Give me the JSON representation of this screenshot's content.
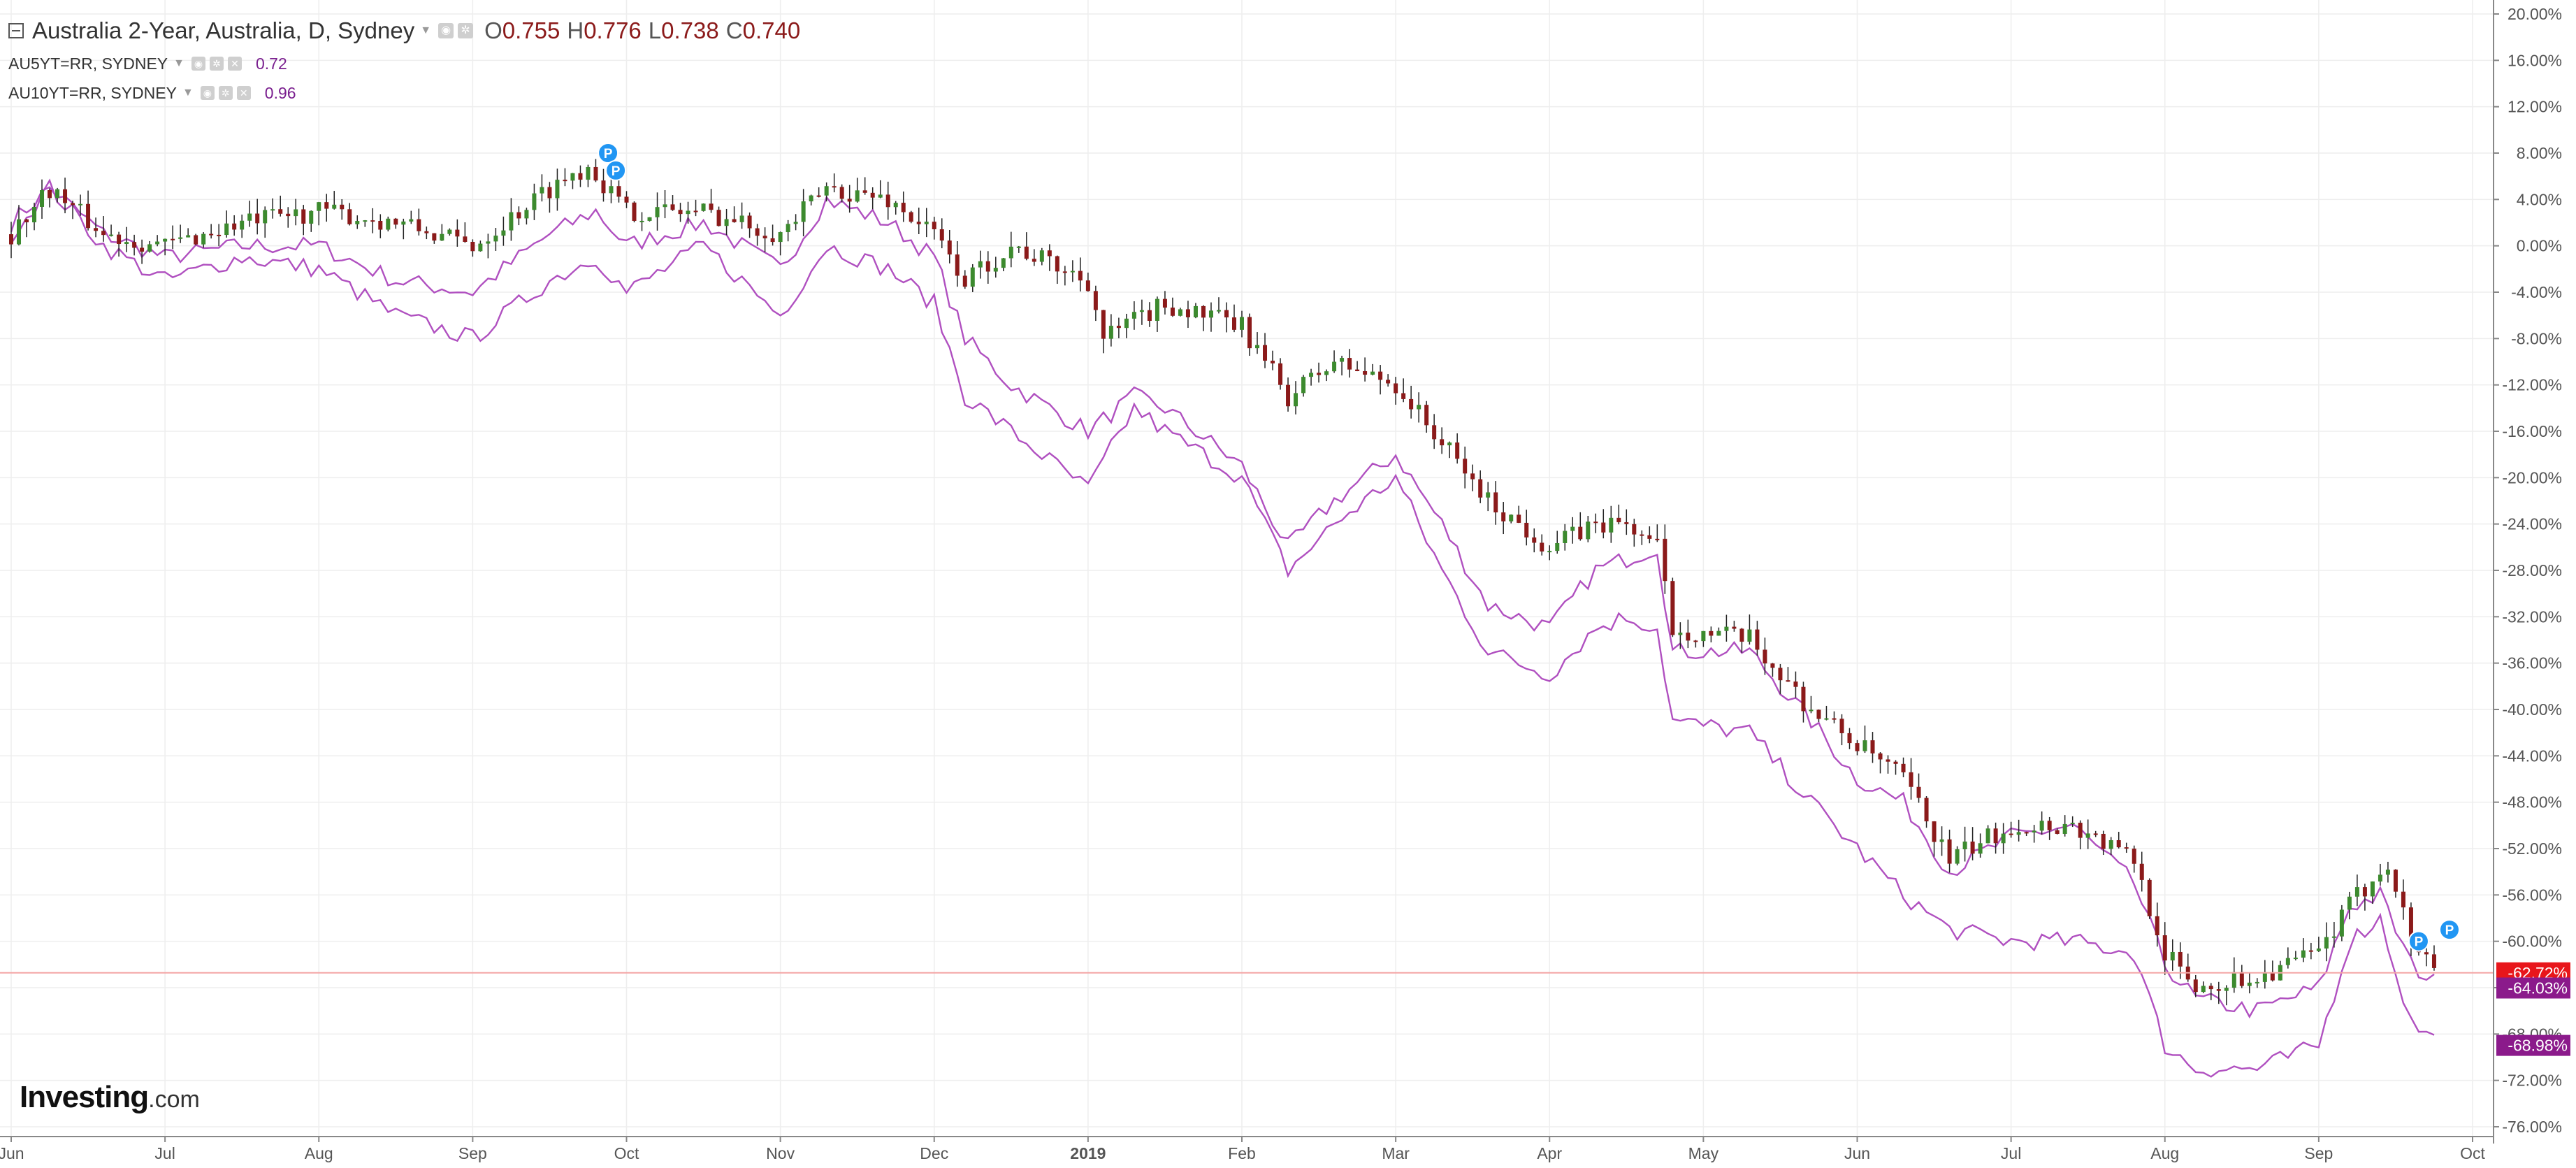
{
  "legend": {
    "main": {
      "title": "Australia 2-Year, Australia, D, Sydney",
      "open_label": "O",
      "open": "0.755",
      "high_label": "H",
      "high": "0.776",
      "low_label": "L",
      "low": "0.738",
      "close_label": "C",
      "close": "0.740"
    },
    "indicators": [
      {
        "name": "AU5YT=RR, SYDNEY",
        "value": "0.72"
      },
      {
        "name": "AU10YT=RR, SYDNEY",
        "value": "0.96"
      }
    ]
  },
  "logo": {
    "main": "Investing",
    "suffix": ".com"
  },
  "colors": {
    "up": "#3c8a2e",
    "down": "#8b1a1a",
    "compare": "#b050c0",
    "badge_main": "#e8161b",
    "badge_compare": "#8b1a8b",
    "event_marker": "#2196f3",
    "grid": "#eeeeee",
    "axis_text": "#555555"
  },
  "event_marker_label": "P",
  "chart_data": {
    "type": "candlestick",
    "y_unit": "percent change",
    "ylim": [
      -76,
      20
    ],
    "y_ticks": [
      "20.00%",
      "16.00%",
      "12.00%",
      "8.00%",
      "4.00%",
      "0.00%",
      "-4.00%",
      "-8.00%",
      "-12.00%",
      "-16.00%",
      "-20.00%",
      "-24.00%",
      "-28.00%",
      "-32.00%",
      "-36.00%",
      "-40.00%",
      "-44.00%",
      "-48.00%",
      "-52.00%",
      "-56.00%",
      "-60.00%",
      "-64.00%",
      "-68.00%",
      "-72.00%",
      "-76.00%"
    ],
    "x_labels": [
      "Jun",
      "Jul",
      "Aug",
      "Sep",
      "Oct",
      "Nov",
      "Dec",
      "2019",
      "Feb",
      "Mar",
      "Apr",
      "May",
      "Jun",
      "Jul",
      "Aug",
      "Sep",
      "Oct"
    ],
    "x_label_bold": "2019",
    "grid": true,
    "last_values": [
      {
        "series": "Australia 2-Year",
        "label": "-62.72%",
        "value": -62.72
      },
      {
        "series": "AU5YT=RR",
        "label": "-64.03%",
        "value": -64.03
      },
      {
        "series": "AU10YT=RR",
        "label": "-68.98%",
        "value": -68.98
      }
    ],
    "main_series_anchors": [
      {
        "month": 0.0,
        "value": 1
      },
      {
        "month": 0.25,
        "value": 5
      },
      {
        "month": 0.6,
        "value": 1
      },
      {
        "month": 1.0,
        "value": 0
      },
      {
        "month": 1.5,
        "value": 2
      },
      {
        "month": 2.0,
        "value": 3
      },
      {
        "month": 2.5,
        "value": 2
      },
      {
        "month": 3.0,
        "value": 0
      },
      {
        "month": 3.5,
        "value": 5
      },
      {
        "month": 3.75,
        "value": 7
      },
      {
        "month": 4.0,
        "value": 3
      },
      {
        "month": 4.5,
        "value": 3
      },
      {
        "month": 5.0,
        "value": 1
      },
      {
        "month": 5.3,
        "value": 5
      },
      {
        "month": 5.7,
        "value": 4
      },
      {
        "month": 6.0,
        "value": 1
      },
      {
        "month": 6.2,
        "value": -3
      },
      {
        "month": 6.5,
        "value": 0
      },
      {
        "month": 7.0,
        "value": -3
      },
      {
        "month": 7.1,
        "value": -8
      },
      {
        "month": 7.5,
        "value": -5
      },
      {
        "month": 8.0,
        "value": -7
      },
      {
        "month": 8.3,
        "value": -13
      },
      {
        "month": 8.6,
        "value": -10
      },
      {
        "month": 9.0,
        "value": -12
      },
      {
        "month": 9.3,
        "value": -17
      },
      {
        "month": 9.6,
        "value": -22
      },
      {
        "month": 10.0,
        "value": -26
      },
      {
        "month": 10.3,
        "value": -24
      },
      {
        "month": 10.5,
        "value": -24
      },
      {
        "month": 10.7,
        "value": -26
      },
      {
        "month": 10.8,
        "value": -33
      },
      {
        "month": 11.3,
        "value": -34
      },
      {
        "month": 11.7,
        "value": -40
      },
      {
        "month": 12.0,
        "value": -43
      },
      {
        "month": 12.3,
        "value": -46
      },
      {
        "month": 12.6,
        "value": -53
      },
      {
        "month": 13.0,
        "value": -50
      },
      {
        "month": 13.4,
        "value": -50
      },
      {
        "month": 13.8,
        "value": -53
      },
      {
        "month": 14.0,
        "value": -61
      },
      {
        "month": 14.2,
        "value": -64
      },
      {
        "month": 14.6,
        "value": -63
      },
      {
        "month": 15.0,
        "value": -61
      },
      {
        "month": 15.2,
        "value": -57
      },
      {
        "month": 15.45,
        "value": -53
      },
      {
        "month": 15.6,
        "value": -60
      },
      {
        "month": 15.8,
        "value": -62.72
      }
    ],
    "compare_series": [
      {
        "name": "AU5YT=RR",
        "anchors": [
          {
            "month": 0.0,
            "value": 2
          },
          {
            "month": 0.25,
            "value": 5
          },
          {
            "month": 0.6,
            "value": 1
          },
          {
            "month": 1.0,
            "value": -1
          },
          {
            "month": 1.5,
            "value": 0
          },
          {
            "month": 2.0,
            "value": 0
          },
          {
            "month": 2.5,
            "value": -3
          },
          {
            "month": 3.0,
            "value": -4
          },
          {
            "month": 3.5,
            "value": 1
          },
          {
            "month": 3.8,
            "value": 3
          },
          {
            "month": 4.0,
            "value": 0
          },
          {
            "month": 4.5,
            "value": 2
          },
          {
            "month": 5.0,
            "value": -2
          },
          {
            "month": 5.3,
            "value": 4
          },
          {
            "month": 5.7,
            "value": 2
          },
          {
            "month": 6.0,
            "value": -1
          },
          {
            "month": 6.2,
            "value": -8
          },
          {
            "month": 6.5,
            "value": -12
          },
          {
            "month": 7.0,
            "value": -16
          },
          {
            "month": 7.3,
            "value": -13
          },
          {
            "month": 7.5,
            "value": -14
          },
          {
            "month": 8.0,
            "value": -19
          },
          {
            "month": 8.3,
            "value": -26
          },
          {
            "month": 8.6,
            "value": -22
          },
          {
            "month": 9.0,
            "value": -18
          },
          {
            "month": 9.3,
            "value": -24
          },
          {
            "month": 9.6,
            "value": -31
          },
          {
            "month": 10.0,
            "value": -33
          },
          {
            "month": 10.3,
            "value": -28
          },
          {
            "month": 10.5,
            "value": -27
          },
          {
            "month": 10.7,
            "value": -26
          },
          {
            "month": 10.8,
            "value": -35
          },
          {
            "month": 11.3,
            "value": -35
          },
          {
            "month": 11.7,
            "value": -41
          },
          {
            "month": 12.0,
            "value": -46
          },
          {
            "month": 12.3,
            "value": -48
          },
          {
            "month": 12.6,
            "value": -54
          },
          {
            "month": 13.0,
            "value": -51
          },
          {
            "month": 13.4,
            "value": -50
          },
          {
            "month": 13.8,
            "value": -55
          },
          {
            "month": 14.0,
            "value": -62
          },
          {
            "month": 14.2,
            "value": -65
          },
          {
            "month": 14.6,
            "value": -66
          },
          {
            "month": 15.0,
            "value": -64
          },
          {
            "month": 15.2,
            "value": -57
          },
          {
            "month": 15.4,
            "value": -56
          },
          {
            "month": 15.6,
            "value": -62
          },
          {
            "month": 15.8,
            "value": -64.03
          }
        ]
      },
      {
        "name": "AU10YT=RR",
        "anchors": [
          {
            "month": 0.0,
            "value": 1
          },
          {
            "month": 0.25,
            "value": 5
          },
          {
            "month": 0.6,
            "value": 0
          },
          {
            "month": 1.0,
            "value": -3
          },
          {
            "month": 1.5,
            "value": -1
          },
          {
            "month": 2.0,
            "value": -2
          },
          {
            "month": 2.5,
            "value": -6
          },
          {
            "month": 3.0,
            "value": -8
          },
          {
            "month": 3.5,
            "value": -3
          },
          {
            "month": 3.8,
            "value": -1
          },
          {
            "month": 4.0,
            "value": -4
          },
          {
            "month": 4.5,
            "value": 0
          },
          {
            "month": 5.0,
            "value": -6
          },
          {
            "month": 5.3,
            "value": 0
          },
          {
            "month": 5.7,
            "value": -2
          },
          {
            "month": 6.0,
            "value": -5
          },
          {
            "month": 6.2,
            "value": -13
          },
          {
            "month": 6.5,
            "value": -16
          },
          {
            "month": 7.0,
            "value": -21
          },
          {
            "month": 7.3,
            "value": -14
          },
          {
            "month": 7.5,
            "value": -16
          },
          {
            "month": 8.0,
            "value": -20
          },
          {
            "month": 8.3,
            "value": -28
          },
          {
            "month": 8.6,
            "value": -24
          },
          {
            "month": 9.0,
            "value": -20
          },
          {
            "month": 9.3,
            "value": -28
          },
          {
            "month": 9.6,
            "value": -35
          },
          {
            "month": 10.0,
            "value": -37
          },
          {
            "month": 10.3,
            "value": -33
          },
          {
            "month": 10.5,
            "value": -32
          },
          {
            "month": 10.7,
            "value": -33
          },
          {
            "month": 10.8,
            "value": -41
          },
          {
            "month": 11.3,
            "value": -42
          },
          {
            "month": 11.7,
            "value": -48
          },
          {
            "month": 12.0,
            "value": -52
          },
          {
            "month": 12.3,
            "value": -56
          },
          {
            "month": 12.6,
            "value": -59
          },
          {
            "month": 13.0,
            "value": -60
          },
          {
            "month": 13.4,
            "value": -60
          },
          {
            "month": 13.8,
            "value": -61
          },
          {
            "month": 14.0,
            "value": -69
          },
          {
            "month": 14.2,
            "value": -71
          },
          {
            "month": 14.6,
            "value": -71
          },
          {
            "month": 15.0,
            "value": -69
          },
          {
            "month": 15.2,
            "value": -60
          },
          {
            "month": 15.4,
            "value": -58
          },
          {
            "month": 15.6,
            "value": -67
          },
          {
            "month": 15.8,
            "value": -68.98
          }
        ]
      }
    ],
    "event_markers": [
      {
        "month": 3.88,
        "value": 8
      },
      {
        "month": 3.93,
        "value": 6.5
      },
      {
        "month": 15.65,
        "value": -60
      },
      {
        "month": 15.85,
        "value": -59
      }
    ]
  }
}
